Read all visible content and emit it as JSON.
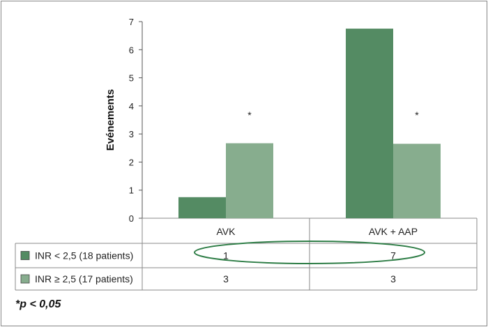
{
  "chart_data": {
    "type": "bar",
    "categories": [
      "AVK",
      "AVK + AAP"
    ],
    "ylabel": "Evénements",
    "ylim": [
      0,
      7
    ],
    "yticks": [
      "0",
      "1",
      "2",
      "3",
      "4",
      "5",
      "6",
      "7"
    ],
    "series": [
      {
        "name": "INR < 2,5 (18 patients)",
        "values": [
          0.75,
          6.75
        ],
        "table_values": [
          "1",
          "7"
        ],
        "color": "#548b63"
      },
      {
        "name": "INR ≥ 2,5 (17 patients)",
        "values": [
          2.67,
          2.65
        ],
        "table_values": [
          "3",
          "3"
        ],
        "color": "#87ad8e"
      }
    ],
    "significance_markers": [
      "*",
      "*"
    ],
    "highlight_color": "#2e7d46",
    "grid": false,
    "legend": "table-below"
  },
  "footnote": "*p < 0,05"
}
